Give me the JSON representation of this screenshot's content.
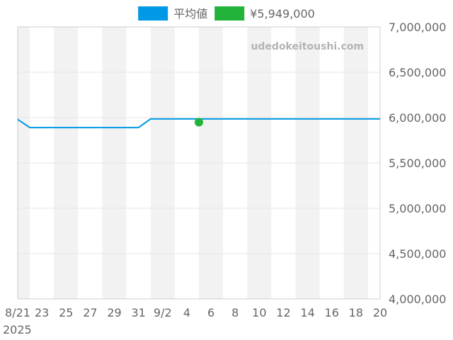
{
  "chart_data": {
    "type": "line",
    "watermark": "udedokeitoushi.com",
    "legend_position": "top-center",
    "grid": true,
    "y_axis_side": "right",
    "ylim": [
      4000000,
      7000000
    ],
    "y_ticks": [
      4000000,
      4500000,
      5000000,
      5500000,
      6000000,
      6500000,
      7000000
    ],
    "y_tick_labels": [
      "4,000,000",
      "4,500,000",
      "5,000,000",
      "5,500,000",
      "6,000,000",
      "6,500,000",
      "7,000,000"
    ],
    "xlim": [
      "2025-08-21",
      "2025-09-20"
    ],
    "x_ticks": [
      "2025-08-21",
      "2025-08-23",
      "2025-08-25",
      "2025-08-27",
      "2025-08-29",
      "2025-08-31",
      "2025-09-02",
      "2025-09-04",
      "2025-09-06",
      "2025-09-08",
      "2025-09-10",
      "2025-09-12",
      "2025-09-14",
      "2025-09-16",
      "2025-09-18",
      "2025-09-20"
    ],
    "x_tick_labels": [
      "8/21",
      "23",
      "25",
      "27",
      "29",
      "31",
      "9/2",
      "4",
      "6",
      "8",
      "10",
      "12",
      "14",
      "16",
      "18",
      "20"
    ],
    "x_year_label": "2025",
    "series": [
      {
        "name": "平均値",
        "color": "#0099e6",
        "kind": "line",
        "points": [
          {
            "x": "2025-08-21",
            "y": 5980000
          },
          {
            "x": "2025-08-22",
            "y": 5890000
          },
          {
            "x": "2025-08-31",
            "y": 5890000
          },
          {
            "x": "2025-09-01",
            "y": 5985000
          },
          {
            "x": "2025-09-20",
            "y": 5985000
          }
        ]
      },
      {
        "name": "¥5,949,000",
        "color": "#22b33a",
        "kind": "point",
        "points": [
          {
            "x": "2025-09-05",
            "y": 5949000
          }
        ]
      }
    ]
  }
}
